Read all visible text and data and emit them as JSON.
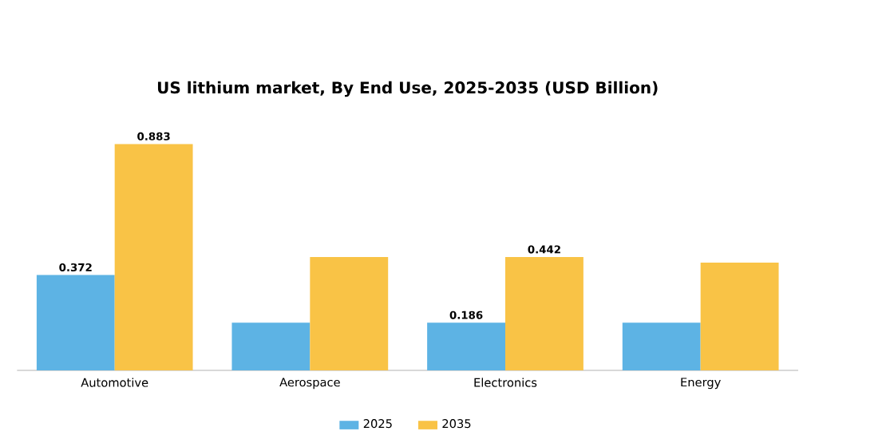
{
  "chart_data": {
    "type": "bar",
    "title": "US lithium market, By End Use, 2025-2035 (USD Billion)",
    "categories": [
      "Automotive",
      "Aerospace",
      "Electronics",
      "Energy"
    ],
    "series": [
      {
        "name": "2025",
        "color": "#5db3e4",
        "values": [
          0.372,
          0.186,
          0.186,
          0.186
        ],
        "value_labels": [
          "0.372",
          null,
          "0.186",
          null
        ]
      },
      {
        "name": "2035",
        "color": "#f9c346",
        "values": [
          0.883,
          0.442,
          0.442,
          0.42
        ],
        "value_labels": [
          "0.883",
          null,
          "0.442",
          null
        ]
      }
    ],
    "legend": "bottom",
    "tick_labels": "x",
    "grid": false
  }
}
